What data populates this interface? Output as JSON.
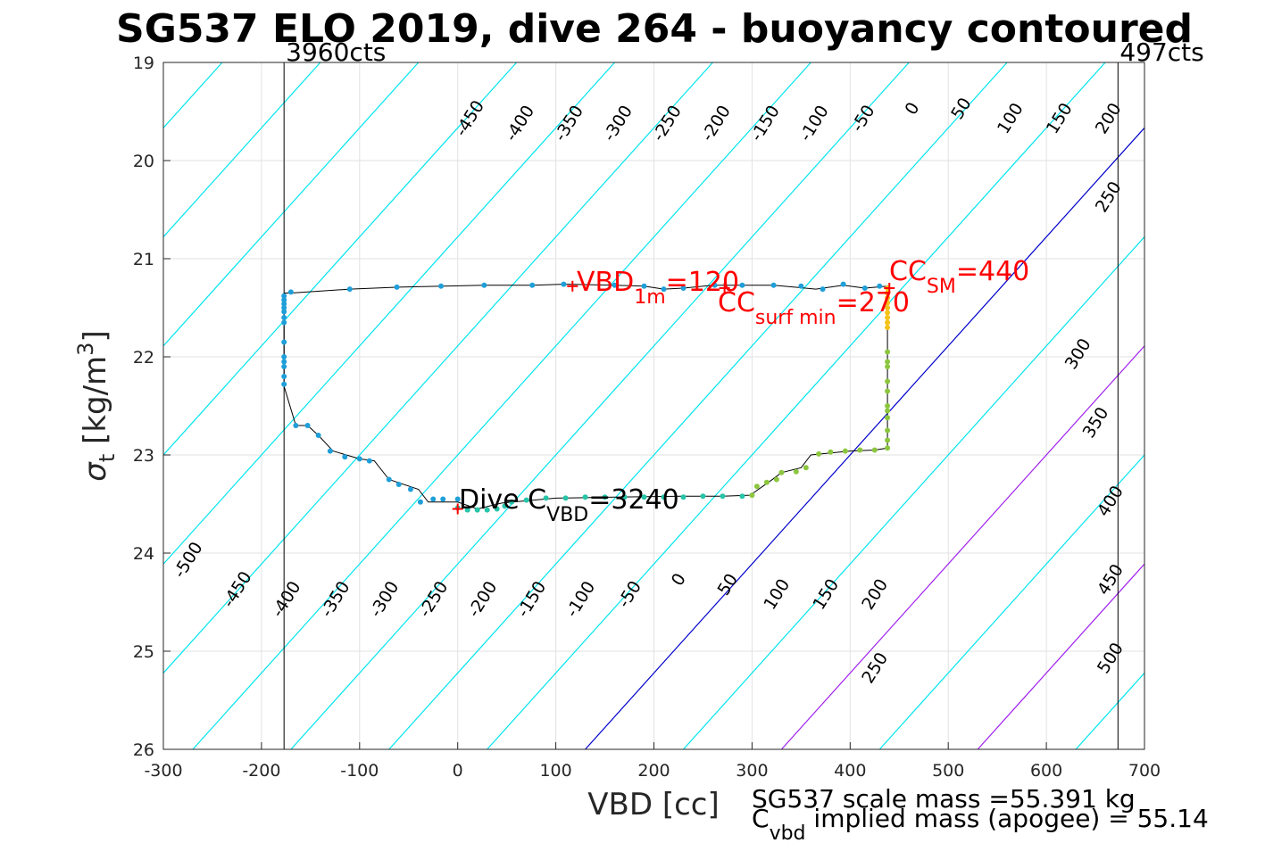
{
  "chart_data": {
    "type": "scatter",
    "title": "SG537 ELO 2019, dive 264 - buoyancy contoured",
    "xlabel": "VBD [cc]",
    "ylabel_symbol": "σ",
    "ylabel_sub": "t",
    "ylabel_units": "[kg/m",
    "ylabel_units_sup": "3",
    "ylabel_units_close": "]",
    "xlim": [
      -300,
      700
    ],
    "ylim": [
      19,
      26
    ],
    "y_reversed": true,
    "grid": true,
    "xticks": [
      "-300",
      "-200",
      "-100",
      "0",
      "100",
      "200",
      "300",
      "400",
      "500",
      "600",
      "700"
    ],
    "yticks": [
      "19",
      "20",
      "21",
      "22",
      "23",
      "24",
      "25",
      "26"
    ],
    "vertical_lines": [
      {
        "x": -177,
        "label": "3960cts"
      },
      {
        "x": 673,
        "label": "497cts"
      }
    ],
    "contour_slope_cc_per_sigma": 90,
    "contour_levels": [
      -500,
      -450,
      -400,
      -350,
      -300,
      -250,
      -200,
      -150,
      -100,
      -50,
      0,
      50,
      100,
      150,
      200,
      250,
      300,
      350,
      400,
      450,
      500
    ],
    "contour_zero_vbd_at_sigma_26": 130,
    "contour_colors": {
      "negative": "#00e5ee",
      "zero": "#0000cc",
      "highlight": "#a020f0",
      "positive": "#00e5ee"
    },
    "highlight_levels": [
      100,
      200
    ],
    "contour_labels_upper": [
      {
        "level": "-450",
        "x": 17,
        "y": 19.6
      },
      {
        "level": "-400",
        "x": 68,
        "y": 19.65
      },
      {
        "level": "-350",
        "x": 118,
        "y": 19.65
      },
      {
        "level": "-300",
        "x": 168,
        "y": 19.65
      },
      {
        "level": "-250",
        "x": 218,
        "y": 19.65
      },
      {
        "level": "-200",
        "x": 268,
        "y": 19.65
      },
      {
        "level": "-150",
        "x": 318,
        "y": 19.65
      },
      {
        "level": "-100",
        "x": 368,
        "y": 19.65
      },
      {
        "level": "-50",
        "x": 418,
        "y": 19.6
      },
      {
        "level": "0",
        "x": 468,
        "y": 19.5
      },
      {
        "level": "50",
        "x": 518,
        "y": 19.5
      },
      {
        "level": "100",
        "x": 568,
        "y": 19.6
      },
      {
        "level": "150",
        "x": 618,
        "y": 19.6
      },
      {
        "level": "200",
        "x": 668,
        "y": 19.6
      },
      {
        "level": "250",
        "x": 668,
        "y": 20.4
      },
      {
        "level": "300",
        "x": 637,
        "y": 22.0
      },
      {
        "level": "350",
        "x": 655,
        "y": 22.7
      },
      {
        "level": "400",
        "x": 670,
        "y": 23.5
      },
      {
        "level": "450",
        "x": 670,
        "y": 24.3
      },
      {
        "level": "500",
        "x": 670,
        "y": 25.1
      }
    ],
    "contour_labels_lower": [
      {
        "level": "-500",
        "x": -270,
        "y": 24.1
      },
      {
        "level": "-450",
        "x": -220,
        "y": 24.4
      },
      {
        "level": "-400",
        "x": -170,
        "y": 24.5
      },
      {
        "level": "-350",
        "x": -120,
        "y": 24.5
      },
      {
        "level": "-300",
        "x": -70,
        "y": 24.5
      },
      {
        "level": "-250",
        "x": -20,
        "y": 24.5
      },
      {
        "level": "-200",
        "x": 30,
        "y": 24.5
      },
      {
        "level": "-150",
        "x": 80,
        "y": 24.5
      },
      {
        "level": "-100",
        "x": 130,
        "y": 24.5
      },
      {
        "level": "-50",
        "x": 180,
        "y": 24.45
      },
      {
        "level": "0",
        "x": 230,
        "y": 24.3
      },
      {
        "level": "50",
        "x": 280,
        "y": 24.35
      },
      {
        "level": "100",
        "x": 330,
        "y": 24.45
      },
      {
        "level": "150",
        "x": 380,
        "y": 24.45
      },
      {
        "level": "200",
        "x": 430,
        "y": 24.45
      },
      {
        "level": "250",
        "x": 430,
        "y": 25.2
      }
    ],
    "profile_line": [
      [
        -170,
        21.35
      ],
      [
        -110,
        21.31
      ],
      [
        -60,
        21.29
      ],
      [
        -15,
        21.28
      ],
      [
        27,
        21.27
      ],
      [
        76,
        21.27
      ],
      [
        108,
        21.26
      ],
      [
        160,
        21.27
      ],
      [
        190,
        21.28
      ],
      [
        210,
        21.31
      ],
      [
        230,
        21.3
      ],
      [
        260,
        21.27
      ],
      [
        290,
        21.27
      ],
      [
        322,
        21.27
      ],
      [
        365,
        21.31
      ],
      [
        393,
        21.27
      ],
      [
        415,
        21.3
      ],
      [
        438,
        21.28
      ],
      [
        438,
        21.27
      ],
      [
        438,
        21.55
      ],
      [
        438,
        22.2
      ],
      [
        438,
        22.93
      ],
      [
        425,
        22.95
      ],
      [
        400,
        22.96
      ],
      [
        370,
        22.99
      ],
      [
        360,
        23.0
      ],
      [
        350,
        23.13
      ],
      [
        330,
        23.18
      ],
      [
        318,
        23.27
      ],
      [
        298,
        23.41
      ],
      [
        270,
        23.42
      ],
      [
        230,
        23.42
      ],
      [
        160,
        23.43
      ],
      [
        100,
        23.44
      ],
      [
        45,
        23.49
      ],
      [
        20,
        23.55
      ],
      [
        0,
        23.48
      ],
      [
        -30,
        23.48
      ],
      [
        -40,
        23.35
      ],
      [
        -70,
        23.25
      ],
      [
        -85,
        23.06
      ],
      [
        -100,
        23.04
      ],
      [
        -127,
        22.96
      ],
      [
        -142,
        22.8
      ],
      [
        -153,
        22.7
      ],
      [
        -165,
        22.7
      ],
      [
        -177,
        22.3
      ],
      [
        -177,
        21.35
      ],
      [
        -170,
        21.35
      ]
    ],
    "points_blue": [
      [
        -177,
        21.38
      ],
      [
        -177,
        21.42
      ],
      [
        -177,
        21.46
      ],
      [
        -177,
        21.5
      ],
      [
        -177,
        21.54
      ],
      [
        -177,
        21.6
      ],
      [
        -177,
        21.65
      ],
      [
        -177,
        21.85
      ],
      [
        -177,
        22.0
      ],
      [
        -177,
        22.05
      ],
      [
        -177,
        22.1
      ],
      [
        -177,
        22.2
      ],
      [
        -177,
        22.28
      ],
      [
        -170,
        21.34
      ],
      [
        -110,
        21.31
      ],
      [
        -62,
        21.29
      ],
      [
        -17,
        21.28
      ],
      [
        27,
        21.27
      ],
      [
        76,
        21.27
      ],
      [
        108,
        21.26
      ],
      [
        160,
        21.27
      ],
      [
        190,
        21.28
      ],
      [
        210,
        21.31
      ],
      [
        230,
        21.3
      ],
      [
        262,
        21.27
      ],
      [
        290,
        21.27
      ],
      [
        322,
        21.27
      ],
      [
        350,
        21.28
      ],
      [
        372,
        21.31
      ],
      [
        393,
        21.26
      ],
      [
        415,
        21.3
      ],
      [
        430,
        21.28
      ],
      [
        -165,
        22.7
      ],
      [
        -153,
        22.7
      ],
      [
        -142,
        22.8
      ],
      [
        -130,
        22.96
      ],
      [
        -115,
        23.02
      ],
      [
        -100,
        23.04
      ],
      [
        -90,
        23.06
      ],
      [
        -70,
        23.25
      ],
      [
        -60,
        23.3
      ],
      [
        -48,
        23.35
      ],
      [
        -38,
        23.48
      ],
      [
        -25,
        23.45
      ],
      [
        -15,
        23.45
      ],
      [
        0,
        23.45
      ]
    ],
    "points_teal": [
      [
        0,
        23.54
      ],
      [
        10,
        23.56
      ],
      [
        20,
        23.56
      ],
      [
        30,
        23.56
      ],
      [
        40,
        23.55
      ],
      [
        48,
        23.52
      ],
      [
        55,
        23.48
      ],
      [
        70,
        23.46
      ],
      [
        90,
        23.44
      ],
      [
        110,
        23.44
      ],
      [
        130,
        23.43
      ],
      [
        150,
        23.43
      ],
      [
        170,
        23.43
      ],
      [
        190,
        23.43
      ],
      [
        210,
        23.43
      ],
      [
        230,
        23.43
      ],
      [
        250,
        23.42
      ],
      [
        270,
        23.42
      ],
      [
        290,
        23.42
      ]
    ],
    "points_green": [
      [
        300,
        23.41
      ],
      [
        305,
        23.32
      ],
      [
        315,
        23.28
      ],
      [
        325,
        23.25
      ],
      [
        330,
        23.18
      ],
      [
        345,
        23.17
      ],
      [
        355,
        23.13
      ],
      [
        368,
        22.99
      ],
      [
        380,
        22.97
      ],
      [
        395,
        22.96
      ],
      [
        410,
        22.95
      ],
      [
        425,
        22.95
      ],
      [
        438,
        22.93
      ],
      [
        438,
        22.85
      ],
      [
        438,
        22.75
      ],
      [
        438,
        22.62
      ],
      [
        438,
        22.55
      ],
      [
        438,
        22.5
      ],
      [
        438,
        22.35
      ],
      [
        438,
        22.25
      ],
      [
        438,
        22.1
      ],
      [
        438,
        22.05
      ],
      [
        438,
        21.95
      ]
    ],
    "points_yellow": [
      [
        438,
        21.3
      ],
      [
        438,
        21.35
      ],
      [
        438,
        21.4
      ],
      [
        438,
        21.45
      ],
      [
        438,
        21.5
      ],
      [
        438,
        21.55
      ],
      [
        438,
        21.6
      ],
      [
        438,
        21.65
      ],
      [
        438,
        21.7
      ]
    ],
    "markers_red_plus": [
      {
        "x": 117,
        "y": 21.28
      },
      {
        "x": 272,
        "y": 21.3
      },
      {
        "x": 440,
        "y": 21.3
      },
      {
        "x": 0,
        "y": 23.55
      }
    ],
    "annotations": {
      "vbd_1m": {
        "main": "VBD",
        "sub": "1m",
        "rest": "=120"
      },
      "cc_sm": {
        "main": "CC",
        "sub": "SM",
        "rest": "=440"
      },
      "cc_surf": {
        "main": "CC",
        "sub": "surf min",
        "rest": "=270"
      },
      "dive_c": {
        "main": "Dive C",
        "sub": "VBD",
        "rest": "=3240"
      }
    },
    "footer": {
      "line1": "SG537 scale mass =55.391 kg",
      "line2_main": "C",
      "line2_sub": "vbd",
      "line2_rest": " implied mass (apogee) = 55.14"
    }
  }
}
